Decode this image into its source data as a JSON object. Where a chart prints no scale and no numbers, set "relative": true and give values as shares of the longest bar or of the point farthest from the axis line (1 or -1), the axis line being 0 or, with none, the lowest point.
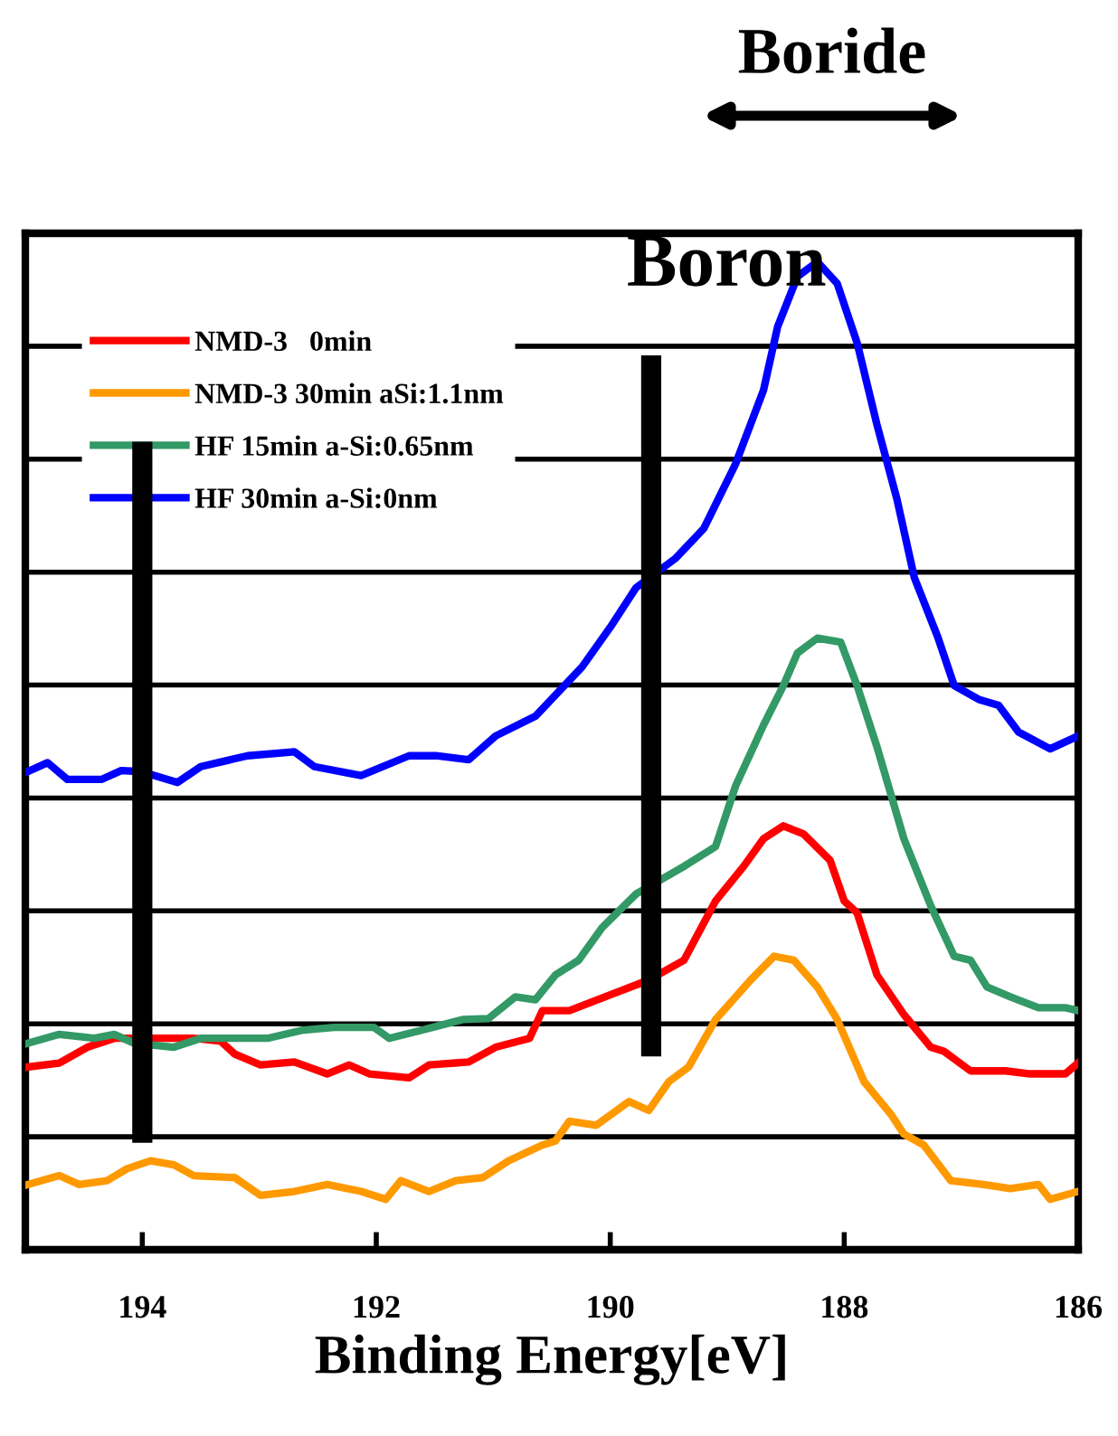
{
  "chart_data": {
    "type": "line",
    "relative": true,
    "xlabel": "Binding Energy[eV]",
    "xlim": [
      195,
      186
    ],
    "xticks": [
      194,
      192,
      190,
      188,
      186
    ],
    "grid": "y",
    "legend": "top left",
    "line_style": "solid",
    "marker": "none",
    "ref_lines": [
      {
        "axis": "x",
        "value": 194.0,
        "label": null,
        "color": "#000000"
      },
      {
        "axis": "x",
        "value": 189.65,
        "label": "Boron",
        "color": "#000000"
      }
    ],
    "annotations": [
      "Boride"
    ],
    "series": [
      {
        "name": "NMD-3   0min",
        "color": "#ff0000",
        "x": [
          194.98,
          194.71,
          194.47,
          194.24,
          193.9,
          193.56,
          193.33,
          193.21,
          192.99,
          192.7,
          192.42,
          192.23,
          192.06,
          191.72,
          191.55,
          191.21,
          190.98,
          190.69,
          190.58,
          190.35,
          190.0,
          189.67,
          189.37,
          189.1,
          188.86,
          188.69,
          188.52,
          188.35,
          188.12,
          188.0,
          187.89,
          187.72,
          187.49,
          187.26,
          187.15,
          186.92,
          186.62,
          186.41,
          186.11,
          186.0
        ],
        "values": [
          0.185,
          0.189,
          0.205,
          0.214,
          0.214,
          0.214,
          0.211,
          0.198,
          0.187,
          0.19,
          0.178,
          0.187,
          0.178,
          0.174,
          0.187,
          0.19,
          0.205,
          0.214,
          0.242,
          0.242,
          0.258,
          0.273,
          0.293,
          0.353,
          0.388,
          0.416,
          0.429,
          0.421,
          0.394,
          0.353,
          0.341,
          0.278,
          0.238,
          0.205,
          0.201,
          0.181,
          0.181,
          0.178,
          0.178,
          0.189
        ]
      },
      {
        "name": "NMD-3 30min aSi:1.1nm",
        "color": "#ff9900",
        "x": [
          194.98,
          194.71,
          194.54,
          194.3,
          194.13,
          193.93,
          193.73,
          193.56,
          193.21,
          192.99,
          192.7,
          192.42,
          192.13,
          191.92,
          191.79,
          191.55,
          191.32,
          191.09,
          190.87,
          190.58,
          190.47,
          190.35,
          190.12,
          189.84,
          189.67,
          189.5,
          189.33,
          189.1,
          188.8,
          188.6,
          188.43,
          188.23,
          188.06,
          187.83,
          187.6,
          187.49,
          187.32,
          187.09,
          186.81,
          186.58,
          186.34,
          186.24,
          186.0
        ],
        "values": [
          0.066,
          0.075,
          0.066,
          0.07,
          0.082,
          0.09,
          0.086,
          0.075,
          0.073,
          0.055,
          0.059,
          0.066,
          0.059,
          0.051,
          0.07,
          0.059,
          0.07,
          0.073,
          0.09,
          0.106,
          0.11,
          0.13,
          0.126,
          0.15,
          0.141,
          0.17,
          0.185,
          0.233,
          0.273,
          0.297,
          0.293,
          0.266,
          0.233,
          0.17,
          0.137,
          0.117,
          0.106,
          0.07,
          0.066,
          0.062,
          0.066,
          0.051,
          0.059
        ]
      },
      {
        "name": "HF 15min a-Si:0.65nm",
        "color": "#339966",
        "x": [
          194.98,
          194.71,
          194.41,
          194.24,
          194.07,
          193.73,
          193.5,
          192.93,
          192.64,
          192.36,
          192.02,
          191.89,
          191.62,
          191.26,
          191.04,
          190.81,
          190.64,
          190.47,
          190.27,
          190.07,
          189.78,
          189.37,
          189.1,
          188.93,
          188.69,
          188.52,
          188.4,
          188.23,
          188.03,
          187.89,
          187.72,
          187.49,
          187.26,
          187.06,
          186.92,
          186.78,
          186.58,
          186.34,
          186.11,
          186.0
        ],
        "values": [
          0.209,
          0.218,
          0.214,
          0.218,
          0.209,
          0.205,
          0.214,
          0.214,
          0.222,
          0.225,
          0.225,
          0.214,
          0.222,
          0.233,
          0.234,
          0.256,
          0.253,
          0.278,
          0.293,
          0.326,
          0.36,
          0.388,
          0.408,
          0.469,
          0.531,
          0.571,
          0.604,
          0.619,
          0.615,
          0.571,
          0.509,
          0.416,
          0.348,
          0.297,
          0.293,
          0.266,
          0.256,
          0.245,
          0.245,
          0.242
        ]
      },
      {
        "name": "HF 30min a-Si:0nm",
        "color": "#0000ff",
        "x": [
          194.98,
          194.81,
          194.64,
          194.35,
          194.18,
          194.01,
          193.7,
          193.5,
          193.1,
          192.7,
          192.53,
          192.13,
          191.72,
          191.49,
          191.21,
          190.98,
          190.64,
          190.24,
          190.0,
          189.78,
          189.44,
          189.2,
          188.93,
          188.69,
          188.57,
          188.4,
          188.23,
          188.06,
          187.89,
          187.72,
          187.55,
          187.4,
          187.2,
          187.06,
          186.85,
          186.68,
          186.51,
          186.24,
          186.0
        ],
        "values": [
          0.484,
          0.493,
          0.476,
          0.476,
          0.485,
          0.484,
          0.473,
          0.489,
          0.5,
          0.504,
          0.489,
          0.48,
          0.5,
          0.5,
          0.496,
          0.52,
          0.54,
          0.59,
          0.63,
          0.67,
          0.7,
          0.73,
          0.795,
          0.87,
          0.934,
          0.985,
          1.0,
          0.978,
          0.918,
          0.835,
          0.76,
          0.68,
          0.62,
          0.571,
          0.557,
          0.551,
          0.524,
          0.507,
          0.52
        ]
      }
    ]
  }
}
